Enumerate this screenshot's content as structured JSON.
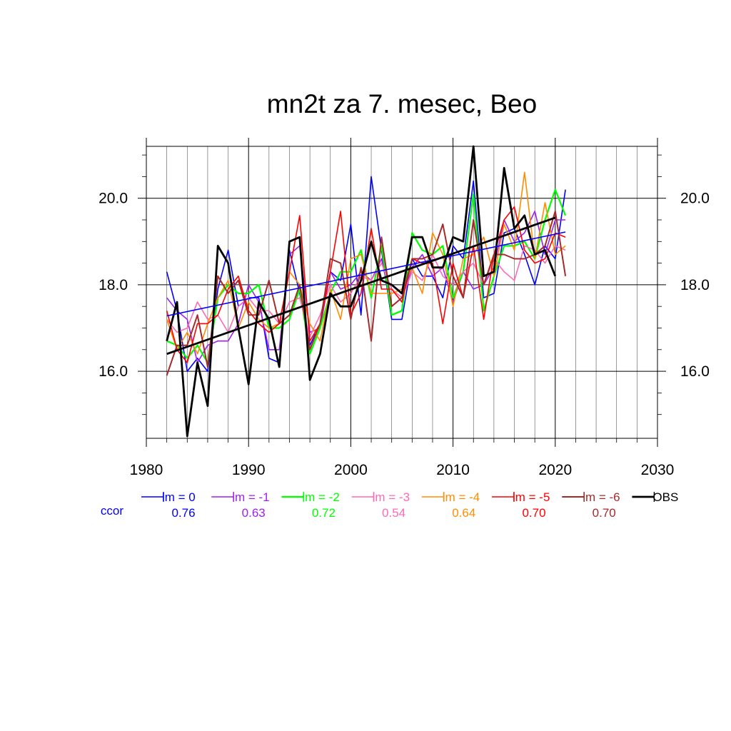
{
  "chart_data": {
    "type": "line",
    "title": "mn2t za 7. mesec, Beo",
    "xlabel": "",
    "ylabel": "",
    "xlim": [
      1980,
      2030
    ],
    "ylim": [
      14.45,
      21.2
    ],
    "x_ticks": [
      "1980",
      "1990",
      "2000",
      "2010",
      "2020",
      "2030"
    ],
    "y_ticks": [
      "16.0",
      "18.0",
      "20.0"
    ],
    "y_tick_values": [
      16,
      18,
      20
    ],
    "grid": true,
    "legend_position": "bottom",
    "ccor_label": "ccor",
    "years": [
      1982,
      1983,
      1984,
      1985,
      1986,
      1987,
      1988,
      1989,
      1990,
      1991,
      1992,
      1993,
      1994,
      1995,
      1996,
      1997,
      1998,
      1999,
      2000,
      2001,
      2002,
      2003,
      2004,
      2005,
      2006,
      2007,
      2008,
      2009,
      2010,
      2011,
      2012,
      2013,
      2014,
      2015,
      2016,
      2017,
      2018,
      2019,
      2020,
      2021
    ],
    "series": [
      {
        "name": "lm = 0",
        "color": "#0000ff",
        "ccor": "0.76",
        "width": 1.6,
        "values": [
          18.3,
          17.4,
          16.0,
          16.3,
          16.0,
          17.9,
          18.8,
          17.5,
          17.7,
          17.7,
          16.3,
          16.2,
          18.8,
          17.8,
          16.6,
          17.1,
          18.3,
          18.1,
          19.4,
          17.3,
          20.5,
          18.8,
          17.2,
          17.2,
          18.6,
          18.2,
          18.2,
          17.7,
          18.9,
          18.6,
          20.4,
          17.7,
          17.8,
          19.2,
          19.3,
          18.7,
          18.0,
          18.9,
          18.6,
          20.2
        ]
      },
      {
        "name": "lm = -1",
        "color": "#a020f0",
        "ccor": "0.63",
        "width": 1.6,
        "values": [
          17.7,
          17.4,
          17.2,
          16.2,
          16.6,
          16.7,
          16.7,
          17.1,
          18.0,
          17.6,
          16.5,
          16.5,
          18.7,
          18.9,
          16.9,
          17.0,
          18.3,
          17.9,
          18.0,
          18.3,
          18.1,
          18.6,
          17.5,
          17.7,
          18.4,
          18.7,
          18.2,
          18.4,
          17.6,
          18.3,
          17.9,
          18.0,
          18.4,
          19.5,
          19.0,
          19.2,
          19.7,
          18.7,
          19.5,
          19.5
        ]
      },
      {
        "name": "lm = -2",
        "color": "#00ff00",
        "ccor": "0.72",
        "width": 2.2,
        "values": [
          16.7,
          16.6,
          16.3,
          16.6,
          16.2,
          17.7,
          18.0,
          17.8,
          17.8,
          18.0,
          17.0,
          17.0,
          17.2,
          17.9,
          16.4,
          17.0,
          17.8,
          18.3,
          18.3,
          18.8,
          17.7,
          18.9,
          17.3,
          17.4,
          19.2,
          18.8,
          18.7,
          18.9,
          17.7,
          18.3,
          20.1,
          17.4,
          18.2,
          18.9,
          18.9,
          19.0,
          18.6,
          19.5,
          20.2,
          19.6
        ]
      },
      {
        "name": "lm = -3",
        "color": "#ff69b4",
        "ccor": "0.54",
        "width": 1.6,
        "values": [
          17.2,
          16.9,
          17.0,
          17.6,
          17.2,
          17.3,
          16.9,
          17.5,
          17.7,
          17.4,
          17.4,
          17.1,
          17.6,
          17.7,
          16.8,
          17.3,
          18.0,
          17.6,
          17.8,
          18.2,
          18.1,
          18.5,
          17.9,
          17.7,
          18.3,
          18.1,
          18.7,
          18.2,
          18.0,
          18.3,
          18.5,
          18.0,
          18.6,
          18.3,
          18.1,
          18.9,
          18.8,
          18.5,
          18.9,
          18.8
        ]
      },
      {
        "name": "lm = -4",
        "color": "#ff8c00",
        "ccor": "0.64",
        "width": 1.6,
        "values": [
          17.2,
          16.5,
          16.9,
          16.4,
          17.1,
          17.7,
          18.1,
          17.0,
          17.6,
          17.2,
          17.0,
          17.1,
          18.3,
          18.0,
          17.1,
          16.7,
          17.9,
          17.2,
          18.6,
          18.7,
          17.8,
          17.8,
          17.8,
          17.9,
          18.4,
          17.8,
          19.2,
          18.7,
          17.5,
          18.6,
          18.7,
          19.1,
          18.2,
          19.4,
          18.8,
          20.6,
          18.6,
          19.9,
          18.7,
          18.9
        ]
      },
      {
        "name": "lm = -5",
        "color": "#ff0000",
        "ccor": "0.70",
        "width": 1.6,
        "values": [
          17.4,
          16.5,
          16.2,
          17.1,
          17.1,
          17.3,
          17.9,
          18.2,
          17.4,
          17.1,
          16.9,
          17.1,
          18.3,
          19.6,
          16.7,
          17.1,
          18.3,
          19.7,
          17.3,
          17.8,
          19.3,
          17.9,
          17.9,
          17.6,
          18.6,
          18.5,
          18.5,
          17.1,
          18.5,
          17.7,
          18.9,
          17.2,
          18.7,
          19.5,
          19.8,
          18.8,
          18.5,
          18.6,
          19.2,
          19.1
        ]
      },
      {
        "name": "lm = -6",
        "color": "#a52a2a",
        "ccor": "0.70",
        "width": 2.0,
        "values": [
          15.9,
          16.6,
          16.6,
          17.3,
          16.1,
          18.2,
          17.8,
          18.1,
          17.3,
          17.3,
          18.1,
          17.1,
          17.3,
          18.0,
          16.5,
          17.1,
          18.6,
          18.5,
          17.2,
          18.4,
          16.7,
          19.1,
          17.5,
          17.7,
          18.6,
          18.6,
          18.7,
          19.4,
          18.2,
          17.7,
          19.5,
          18.0,
          18.7,
          18.7,
          18.6,
          18.6,
          18.7,
          18.9,
          19.7,
          18.2
        ]
      },
      {
        "name": "OBS",
        "color": "#000000",
        "ccor": "",
        "width": 2.8,
        "values": [
          16.7,
          17.6,
          14.5,
          16.2,
          15.2,
          18.9,
          18.5,
          17.0,
          15.7,
          17.6,
          17.2,
          16.1,
          19.0,
          19.1,
          15.8,
          16.4,
          17.8,
          17.5,
          17.5,
          18.1,
          19.0,
          18.1,
          18.0,
          17.8,
          19.1,
          19.1,
          18.4,
          18.4,
          19.1,
          19.0,
          21.2,
          18.2,
          18.3,
          20.7,
          19.3,
          19.6,
          18.7,
          18.8,
          18.2,
          null
        ]
      }
    ],
    "trend_lines": [
      {
        "name": "lm = 0 trend",
        "color": "#0000ff",
        "width": 1.6,
        "x": [
          1982,
          2021
        ],
        "y": [
          17.28,
          19.22
        ]
      },
      {
        "name": "OBS trend",
        "color": "#000000",
        "width": 2.8,
        "x": [
          1982,
          2020
        ],
        "y": [
          16.4,
          19.55
        ]
      }
    ]
  }
}
